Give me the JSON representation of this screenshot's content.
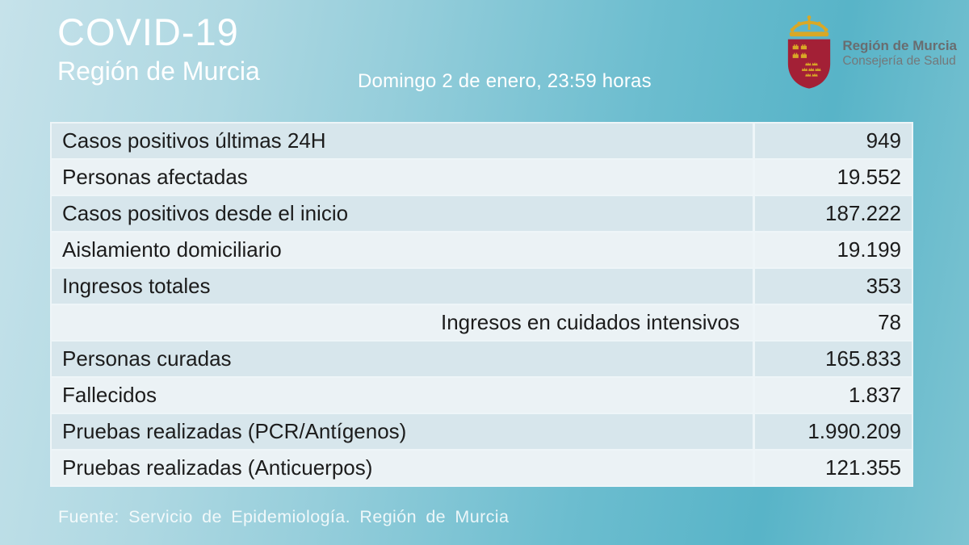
{
  "header": {
    "title": "COVID-19",
    "subtitle": "Región de Murcia",
    "datetime": "Domingo 2 de enero, 23:59 horas",
    "logo": {
      "icon": "murcia-coat-of-arms",
      "org": "Región de Murcia",
      "dept": "Consejería de Salud"
    }
  },
  "table": {
    "rows": [
      {
        "label": "Casos positivos últimas 24H",
        "value": "949",
        "align": "left"
      },
      {
        "label": "Personas afectadas",
        "value": "19.552",
        "align": "left"
      },
      {
        "label": "Casos positivos desde el inicio",
        "value": "187.222",
        "align": "left"
      },
      {
        "label": "Aislamiento domiciliario",
        "value": "19.199",
        "align": "left"
      },
      {
        "label": "Ingresos totales",
        "value": "353",
        "align": "left"
      },
      {
        "label": "Ingresos en cuidados intensivos",
        "value": "78",
        "align": "right"
      },
      {
        "label": "Personas curadas",
        "value": "165.833",
        "align": "left"
      },
      {
        "label": "Fallecidos",
        "value": "1.837",
        "align": "left"
      },
      {
        "label": "Pruebas realizadas (PCR/Antígenos)",
        "value": "1.990.209",
        "align": "left"
      },
      {
        "label": "Pruebas realizadas (Anticuerpos)",
        "value": "121.355",
        "align": "left"
      }
    ]
  },
  "chart_data": {
    "type": "table",
    "title": "COVID-19 Región de Murcia — Domingo 2 de enero, 23:59 horas",
    "categories": [
      "Casos positivos últimas 24H",
      "Personas afectadas",
      "Casos positivos desde el inicio",
      "Aislamiento domiciliario",
      "Ingresos totales",
      "Ingresos en cuidados intensivos",
      "Personas curadas",
      "Fallecidos",
      "Pruebas realizadas (PCR/Antígenos)",
      "Pruebas realizadas (Anticuerpos)"
    ],
    "values": [
      949,
      19552,
      187222,
      19199,
      353,
      78,
      165833,
      1837,
      1990209,
      121355
    ]
  },
  "footer": {
    "source": "Fuente: Servicio de Epidemiología.  Región de Murcia"
  },
  "colors": {
    "background_light": "#c6e2ea",
    "background_teal": "#58b4c8",
    "row_dark": "#d7e6ec",
    "row_light": "#ebf2f5",
    "separator": "#eef5f8",
    "text_dark": "#1c1c1c",
    "text_white": "#ffffff",
    "shield_red": "#a32036",
    "crown_gold": "#d9a826",
    "logo_text_gray": "#696d70"
  }
}
